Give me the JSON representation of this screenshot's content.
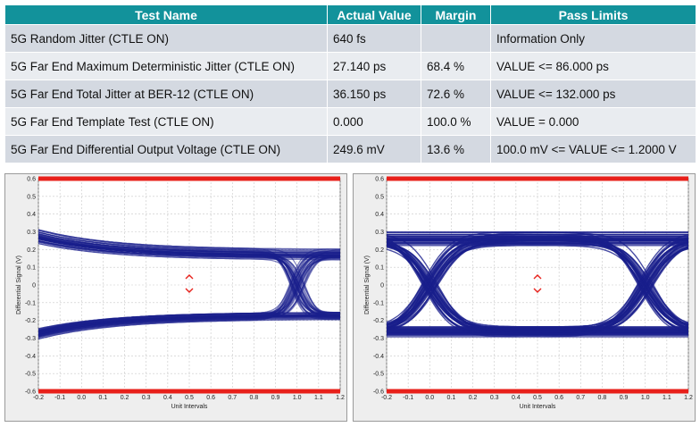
{
  "table": {
    "headers": [
      "Test Name",
      "Actual Value",
      "Margin",
      "Pass Limits"
    ],
    "rows": [
      {
        "name": "5G Random Jitter (CTLE ON)",
        "value": "640 fs",
        "margin": "",
        "limit": "Information Only"
      },
      {
        "name": "5G Far End Maximum Deterministic Jitter (CTLE ON)",
        "value": "27.140 ps",
        "margin": "68.4 %",
        "limit": "VALUE <= 86.000 ps"
      },
      {
        "name": "5G Far End Total Jitter at BER-12 (CTLE ON)",
        "value": "36.150 ps",
        "margin": "72.6 %",
        "limit": "VALUE <= 132.000 ps"
      },
      {
        "name": "5G Far End Template Test (CTLE ON)",
        "value": "0.000",
        "margin": "100.0 %",
        "limit": "VALUE = 0.000"
      },
      {
        "name": "5G Far End Differential Output Voltage (CTLE ON)",
        "value": "249.6 mV",
        "margin": "13.6 %",
        "limit": "100.0 mV <= VALUE <= 1.2000 V"
      }
    ]
  },
  "chart_data": [
    {
      "type": "line",
      "xlabel": "Unit Intervals",
      "ylabel": "Differential Signal (V)",
      "xlim": [
        -0.2,
        1.2
      ],
      "ylim": [
        -0.6,
        0.6
      ],
      "x_ticks": [
        "-0.2",
        "-0.1",
        "0.0",
        "0.1",
        "0.2",
        "0.3",
        "0.4",
        "0.5",
        "0.6",
        "0.7",
        "0.8",
        "0.9",
        "1.0",
        "1.1",
        "1.2"
      ],
      "y_ticks": [
        "0.6",
        "0.5",
        "0.4",
        "0.3",
        "0.2",
        "0.1",
        "0",
        "-0.1",
        "-0.2",
        "-0.3",
        "-0.4",
        "-0.5",
        "-0.6"
      ],
      "limit_lines": [
        0.6,
        -0.6
      ],
      "eye": {
        "crossings": [
          1.0
        ],
        "level_high": 0.17,
        "level_low": -0.17
      },
      "colors": {
        "trace": "#1a1f8c",
        "limit": "#e8201a",
        "background": "#ffffff",
        "grid": "#c8c8c8"
      }
    },
    {
      "type": "line",
      "xlabel": "Unit Intervals",
      "ylabel": "Differential Signal (V)",
      "xlim": [
        -0.2,
        1.2
      ],
      "ylim": [
        -0.6,
        0.6
      ],
      "x_ticks": [
        "-0.2",
        "-0.1",
        "0.0",
        "0.1",
        "0.2",
        "0.3",
        "0.4",
        "0.5",
        "0.6",
        "0.7",
        "0.8",
        "0.9",
        "1.0",
        "1.1",
        "1.2"
      ],
      "y_ticks": [
        "0.6",
        "0.5",
        "0.4",
        "0.3",
        "0.2",
        "0.1",
        "0",
        "-0.1",
        "-0.2",
        "-0.3",
        "-0.4",
        "-0.5",
        "-0.6"
      ],
      "limit_lines": [
        0.6,
        -0.6
      ],
      "eye": {
        "crossings": [
          0.0,
          1.0
        ],
        "level_high": 0.26,
        "level_low": -0.26
      },
      "colors": {
        "trace": "#1a1f8c",
        "limit": "#e8201a",
        "background": "#ffffff",
        "grid": "#c8c8c8"
      }
    }
  ]
}
